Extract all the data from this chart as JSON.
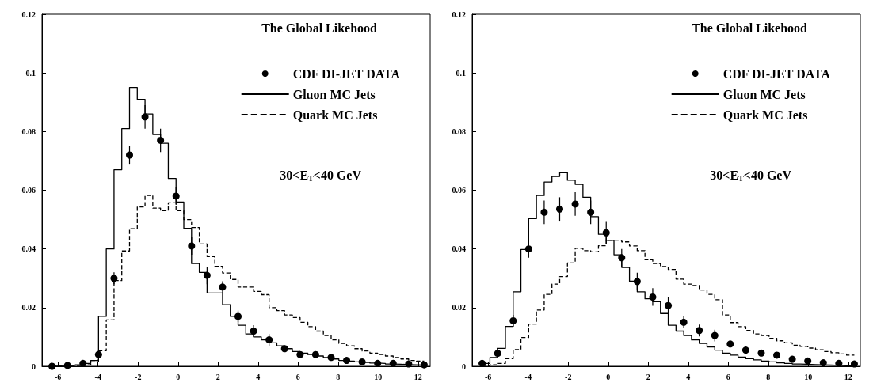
{
  "chart_data": [
    {
      "type": "histogram",
      "title": "The Global Likehood",
      "annotations": [
        "30<E$_{T}$<40 GeV"
      ],
      "bins": [
        -6.3,
        -5.9125,
        -5.525,
        -5.1375,
        -4.75,
        -4.3625,
        -3.975,
        -3.5875,
        -3.2,
        -2.8125,
        -2.425,
        -2.0375,
        -1.65,
        -1.2625,
        -0.875,
        -0.4875,
        -0.1,
        0.2875,
        0.675,
        1.0625,
        1.45,
        1.8375,
        2.225,
        2.6125,
        3.0,
        3.3875,
        3.775,
        4.1625,
        4.55,
        4.9375,
        5.325,
        5.7125,
        6.1,
        6.4875,
        6.875,
        7.2625,
        7.65,
        8.0375,
        8.425,
        8.8125,
        9.2,
        9.5875,
        9.975,
        10.3625,
        10.75,
        11.1375,
        11.525,
        11.9125,
        12.3
      ],
      "series": [
        {
          "name": "CDF DI-JET DATA",
          "type": "scatter",
          "marker": "circle",
          "color": "#000000",
          "x": [
            -6.3,
            -5.525,
            -4.75,
            -3.975,
            -3.2,
            -2.425,
            -1.65,
            -0.875,
            -0.1,
            0.675,
            1.45,
            2.225,
            3.0,
            3.775,
            4.55,
            5.325,
            6.1,
            6.875,
            7.65,
            8.425,
            9.2,
            9.975,
            10.75,
            11.525,
            12.3
          ],
          "values": [
            0,
            0.0003,
            0.001,
            0.004,
            0.03,
            0.072,
            0.085,
            0.077,
            0.058,
            0.041,
            0.031,
            0.027,
            0.017,
            0.012,
            0.009,
            0.006,
            0.004,
            0.004,
            0.003,
            0.002,
            0.0015,
            0.001,
            0.001,
            0.0008,
            0.0005
          ],
          "errors": [
            null,
            null,
            null,
            0.001,
            0.002,
            0.003,
            0.004,
            0.004,
            0.003,
            0.003,
            0.003,
            0.002,
            0.002,
            0.002,
            0.002,
            0.001,
            0.001,
            0.001,
            null,
            null,
            null,
            null,
            null,
            null,
            null
          ]
        },
        {
          "name": "Gluon MC Jets",
          "type": "histogram",
          "line_style": "solid",
          "color": "#000000",
          "values": [
            0,
            0,
            0.0003,
            0.0005,
            0.001,
            0.002,
            0.017,
            0.04,
            0.067,
            0.081,
            0.095,
            0.091,
            0.086,
            0.079,
            0.076,
            0.064,
            0.056,
            0.047,
            0.035,
            0.032,
            0.025,
            0.025,
            0.021,
            0.017,
            0.014,
            0.011,
            0.01,
            0.009,
            0.008,
            0.007,
            0.006,
            0.005,
            0.0045,
            0.004,
            0.0035,
            0.003,
            0.0025,
            0.002,
            0.0018,
            0.0015,
            0.0013,
            0.0011,
            0.001,
            0.0008,
            0.0007,
            0.0006,
            0.0005,
            0.0004
          ]
        },
        {
          "name": "Quark MC Jets",
          "type": "histogram",
          "line_style": "dashed",
          "color": "#000000",
          "values": [
            0,
            0,
            0,
            0,
            0.0005,
            0.0015,
            0.0053,
            0.0158,
            0.0292,
            0.0393,
            0.0469,
            0.0543,
            0.0582,
            0.0539,
            0.053,
            0.0557,
            0.053,
            0.05,
            0.0473,
            0.0417,
            0.0374,
            0.0341,
            0.0318,
            0.0296,
            0.027,
            0.027,
            0.0255,
            0.0244,
            0.02,
            0.019,
            0.0175,
            0.0166,
            0.015,
            0.0135,
            0.012,
            0.0105,
            0.009,
            0.0078,
            0.007,
            0.006,
            0.0052,
            0.0045,
            0.004,
            0.0035,
            0.003,
            0.0025,
            0.002,
            0.0018
          ]
        }
      ],
      "xlim": [
        -6.8,
        12.6
      ],
      "xticks": [
        -6,
        -4,
        -2,
        0,
        2,
        4,
        6,
        8,
        10,
        12
      ],
      "ylim": [
        0,
        0.12
      ],
      "yticks": [
        0,
        0.02,
        0.04,
        0.06,
        0.08,
        0.1,
        0.12
      ],
      "grid": false,
      "legend": "top right"
    },
    {
      "type": "histogram",
      "title": "The Global Likehood",
      "annotations": [
        "30<E$_{T}$<40 GeV"
      ],
      "bins": [
        -6.3,
        -5.9125,
        -5.525,
        -5.1375,
        -4.75,
        -4.3625,
        -3.975,
        -3.5875,
        -3.2,
        -2.8125,
        -2.425,
        -2.0375,
        -1.65,
        -1.2625,
        -0.875,
        -0.4875,
        -0.1,
        0.2875,
        0.675,
        1.0625,
        1.45,
        1.8375,
        2.225,
        2.6125,
        3.0,
        3.3875,
        3.775,
        4.1625,
        4.55,
        4.9375,
        5.325,
        5.7125,
        6.1,
        6.4875,
        6.875,
        7.2625,
        7.65,
        8.0375,
        8.425,
        8.8125,
        9.2,
        9.5875,
        9.975,
        10.3625,
        10.75,
        11.1375,
        11.525,
        11.9125,
        12.3
      ],
      "series": [
        {
          "name": "CDF DI-JET DATA",
          "type": "scatter",
          "marker": "circle",
          "color": "#000000",
          "x": [
            -6.3,
            -5.525,
            -4.75,
            -3.975,
            -3.2,
            -2.425,
            -1.65,
            -0.875,
            -0.1,
            0.675,
            1.45,
            2.225,
            3.0,
            3.775,
            4.55,
            5.325,
            6.1,
            6.875,
            7.65,
            8.425,
            9.2,
            9.975,
            10.75,
            11.525,
            12.3
          ],
          "values": [
            0.001,
            0.0044,
            0.0155,
            0.04,
            0.0525,
            0.0536,
            0.0553,
            0.0525,
            0.0455,
            0.037,
            0.0289,
            0.0236,
            0.0207,
            0.015,
            0.0122,
            0.0105,
            0.0076,
            0.0055,
            0.0045,
            0.0038,
            0.0024,
            0.0018,
            0.0012,
            0.001,
            0.0008
          ],
          "errors": [
            null,
            0.001,
            0.002,
            0.003,
            0.004,
            0.004,
            0.004,
            0.004,
            0.004,
            0.003,
            0.003,
            0.003,
            0.003,
            0.002,
            0.002,
            0.002,
            0.001,
            0.001,
            null,
            null,
            null,
            null,
            null,
            null,
            null
          ]
        },
        {
          "name": "Gluon MC Jets",
          "type": "histogram",
          "line_style": "solid",
          "color": "#000000",
          "values": [
            0.001,
            0.003,
            0.0061,
            0.0136,
            0.0254,
            0.0398,
            0.0503,
            0.0582,
            0.0628,
            0.0647,
            0.066,
            0.0634,
            0.062,
            0.0576,
            0.051,
            0.045,
            0.0429,
            0.038,
            0.0337,
            0.029,
            0.0254,
            0.023,
            0.022,
            0.018,
            0.014,
            0.012,
            0.0105,
            0.009,
            0.0078,
            0.0066,
            0.0055,
            0.0045,
            0.0038,
            0.0031,
            0.0026,
            0.0022,
            0.0018,
            0.0015,
            0.0012,
            0.001,
            0.0008,
            0.0007,
            0.0006,
            0.0005,
            0.0004,
            0.0003,
            0.0002,
            0.0002
          ]
        },
        {
          "name": "Quark MC Jets",
          "type": "histogram",
          "line_style": "dashed",
          "color": "#000000",
          "values": [
            0,
            0.0005,
            0.001,
            0.0026,
            0.0057,
            0.0098,
            0.0144,
            0.0192,
            0.0245,
            0.028,
            0.0306,
            0.0352,
            0.0402,
            0.0394,
            0.039,
            0.0411,
            0.043,
            0.043,
            0.0424,
            0.041,
            0.0394,
            0.0363,
            0.035,
            0.034,
            0.033,
            0.0297,
            0.028,
            0.0275,
            0.026,
            0.0245,
            0.0227,
            0.0175,
            0.0149,
            0.0135,
            0.0122,
            0.011,
            0.0105,
            0.0095,
            0.0087,
            0.008,
            0.0072,
            0.0068,
            0.0062,
            0.0056,
            0.005,
            0.0046,
            0.0042,
            0.0038
          ]
        }
      ],
      "xlim": [
        -6.8,
        12.6
      ],
      "xticks": [
        -6,
        -4,
        -2,
        0,
        2,
        4,
        6,
        8,
        10,
        12
      ],
      "ylim": [
        0,
        0.12
      ],
      "yticks": [
        0,
        0.02,
        0.04,
        0.06,
        0.08,
        0.1,
        0.12
      ],
      "grid": false,
      "legend": "top right"
    }
  ]
}
